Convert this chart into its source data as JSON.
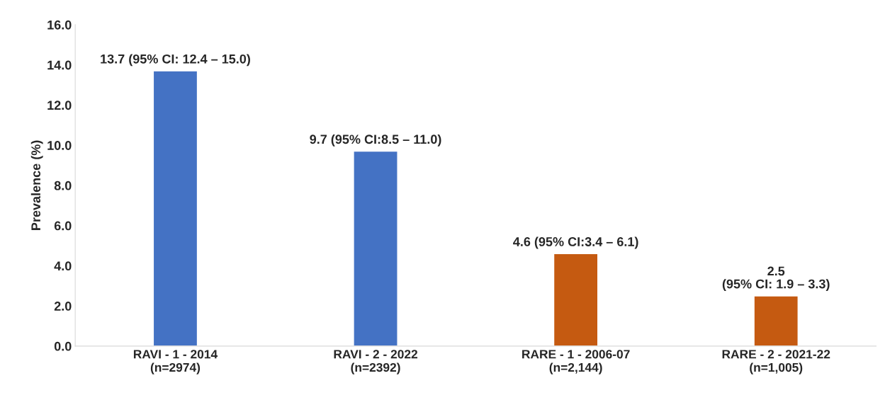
{
  "chart_data": {
    "type": "bar",
    "categories": [
      "RAVI - 1 - 2014\n(n=2974)",
      "RAVI - 2 - 2022\n(n=2392)",
      "RARE - 1 - 2006-07\n(n=2,144)",
      "RARE - 2 - 2021-22\n(n=1,005)"
    ],
    "values": [
      13.7,
      9.7,
      4.6,
      2.5
    ],
    "colors": [
      "#4472c4",
      "#4472c4",
      "#c55a11",
      "#c55a11"
    ],
    "value_labels": [
      "13.7 (95% CI: 12.4 – 15.0)",
      "9.7 (95% CI:8.5 – 11.0)",
      "4.6 (95% CI:3.4 – 6.1)",
      "2.5\n(95% CI: 1.9 – 3.3)"
    ],
    "ylabel": "Prevalence (%)",
    "ylim": [
      0,
      16
    ],
    "yticks": [
      {
        "value": 0,
        "label": "0.0"
      },
      {
        "value": 2,
        "label": "2.0"
      },
      {
        "value": 4,
        "label": "4.0"
      },
      {
        "value": 6,
        "label": "6.0"
      },
      {
        "value": 8,
        "label": "8.0"
      },
      {
        "value": 10,
        "label": "10.0"
      },
      {
        "value": 12,
        "label": "12.0"
      },
      {
        "value": 14,
        "label": "14.0"
      },
      {
        "value": 16,
        "label": "16.0"
      }
    ],
    "grid": false
  }
}
